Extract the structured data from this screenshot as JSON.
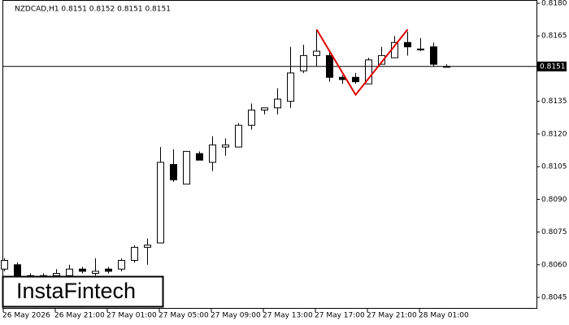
{
  "chart_data": {
    "type": "candlestick",
    "title": "NZDCAD,H1  0.8151 0.8152 0.8151 0.8151",
    "categories": [
      "26 May 2026",
      null,
      null,
      null,
      "26 May 21:00",
      null,
      null,
      null,
      "27 May 01:00",
      null,
      null,
      null,
      "27 May 05:00",
      null,
      null,
      null,
      "27 May 09:00",
      null,
      null,
      null,
      "27 May 13:00",
      null,
      null,
      null,
      "27 May 17:00",
      null,
      null,
      null,
      "27 May 21:00",
      null,
      null,
      null,
      "28 May 01:00",
      null,
      null
    ],
    "open": [
      0.8058,
      0.806,
      0.8054,
      0.8054,
      0.8055,
      0.8055,
      0.8058,
      0.8056,
      0.8058,
      0.8058,
      0.8062,
      0.8068,
      0.807,
      0.8106,
      0.8097,
      0.8111,
      0.8107,
      0.8114,
      0.8114,
      0.8124,
      0.8131,
      0.8132,
      0.8135,
      0.8149,
      0.8156,
      0.8156,
      0.8146,
      0.8146,
      0.8143,
      0.8152,
      0.8155,
      0.8162,
      0.8159,
      0.816,
      0.8151
    ],
    "high": [
      0.8063,
      0.8061,
      0.8056,
      0.8056,
      0.8058,
      0.806,
      0.8059,
      0.8063,
      0.8059,
      0.8063,
      0.8069,
      0.8072,
      0.8114,
      0.8113,
      0.8112,
      0.8112,
      0.8119,
      0.8118,
      0.8125,
      0.8134,
      0.8132,
      0.8141,
      0.816,
      0.8161,
      0.8168,
      0.8158,
      0.8147,
      0.8148,
      0.8155,
      0.816,
      0.8165,
      0.8167,
      0.8164,
      0.8162,
      0.8152
    ],
    "low": [
      0.8057,
      0.8054,
      0.8053,
      0.8053,
      0.8054,
      0.8054,
      0.8056,
      0.8055,
      0.8056,
      0.8057,
      0.8061,
      0.806,
      0.807,
      0.8098,
      0.8097,
      0.8108,
      0.8103,
      0.811,
      0.8114,
      0.8122,
      0.8129,
      0.8129,
      0.8132,
      0.8148,
      0.8151,
      0.8144,
      0.8143,
      0.8143,
      0.8143,
      0.8152,
      0.8155,
      0.8156,
      0.8158,
      0.8151,
      0.8151
    ],
    "close": [
      0.8062,
      0.8055,
      0.8055,
      0.8055,
      0.8056,
      0.8058,
      0.8057,
      0.8057,
      0.8057,
      0.8062,
      0.8068,
      0.8069,
      0.8107,
      0.8099,
      0.8112,
      0.8108,
      0.8115,
      0.8115,
      0.8124,
      0.8131,
      0.8132,
      0.8136,
      0.8148,
      0.8156,
      0.8158,
      0.8146,
      0.8145,
      0.8144,
      0.8154,
      0.8156,
      0.8162,
      0.816,
      0.8159,
      0.8152,
      0.8151
    ],
    "up_color": "#ffffff",
    "down_color": "#000000",
    "ylim": [
      0.80398,
      0.81815
    ],
    "yticks": [
      {
        "value": 0.818,
        "label": "0.8180"
      },
      {
        "value": 0.8165,
        "label": "0.8165"
      },
      {
        "value": 0.8135,
        "label": "0.8135"
      },
      {
        "value": 0.812,
        "label": "0.8120"
      },
      {
        "value": 0.8105,
        "label": "0.8105"
      },
      {
        "value": 0.809,
        "label": "0.8090"
      },
      {
        "value": 0.8075,
        "label": "0.8075"
      },
      {
        "value": 0.806,
        "label": "0.8060"
      },
      {
        "value": 0.8045,
        "label": "0.8045"
      }
    ],
    "last_price": {
      "value": 0.8151,
      "label": "0.8151"
    },
    "pattern": {
      "color": "#e00000",
      "x": [
        24,
        27,
        31
      ],
      "values": [
        0.8168,
        0.8138,
        0.8168
      ]
    },
    "watermark": "InstaFintech"
  }
}
